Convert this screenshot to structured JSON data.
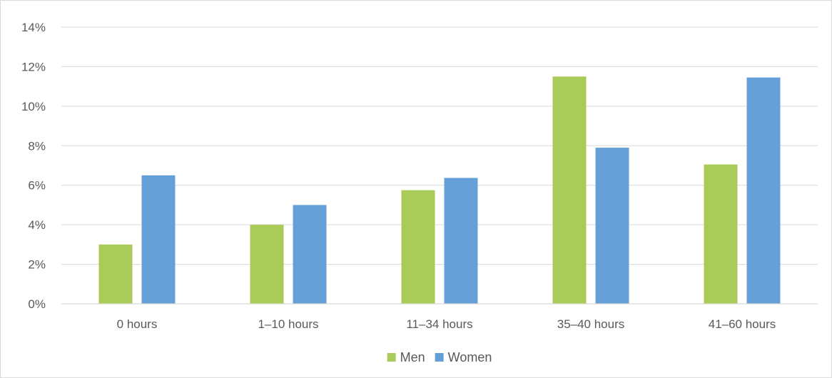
{
  "chart_data": {
    "type": "bar",
    "title": "",
    "xlabel": "",
    "ylabel": "",
    "categories": [
      "0 hours",
      "1–10 hours",
      "11–34 hours",
      "35–40 hours",
      "41–60 hours"
    ],
    "series": [
      {
        "name": "Men",
        "color": "#a9cb57",
        "values": [
          3.0,
          4.0,
          5.75,
          11.5,
          7.05
        ]
      },
      {
        "name": "Women",
        "color": "#659fd8",
        "values": [
          6.5,
          5.0,
          6.37,
          7.9,
          11.45
        ]
      }
    ],
    "ylim": [
      0,
      14
    ],
    "yticks": [
      "0%",
      "2%",
      "4%",
      "6%",
      "8%",
      "10%",
      "12%",
      "14%"
    ],
    "grid": true,
    "legend_position": "bottom"
  }
}
